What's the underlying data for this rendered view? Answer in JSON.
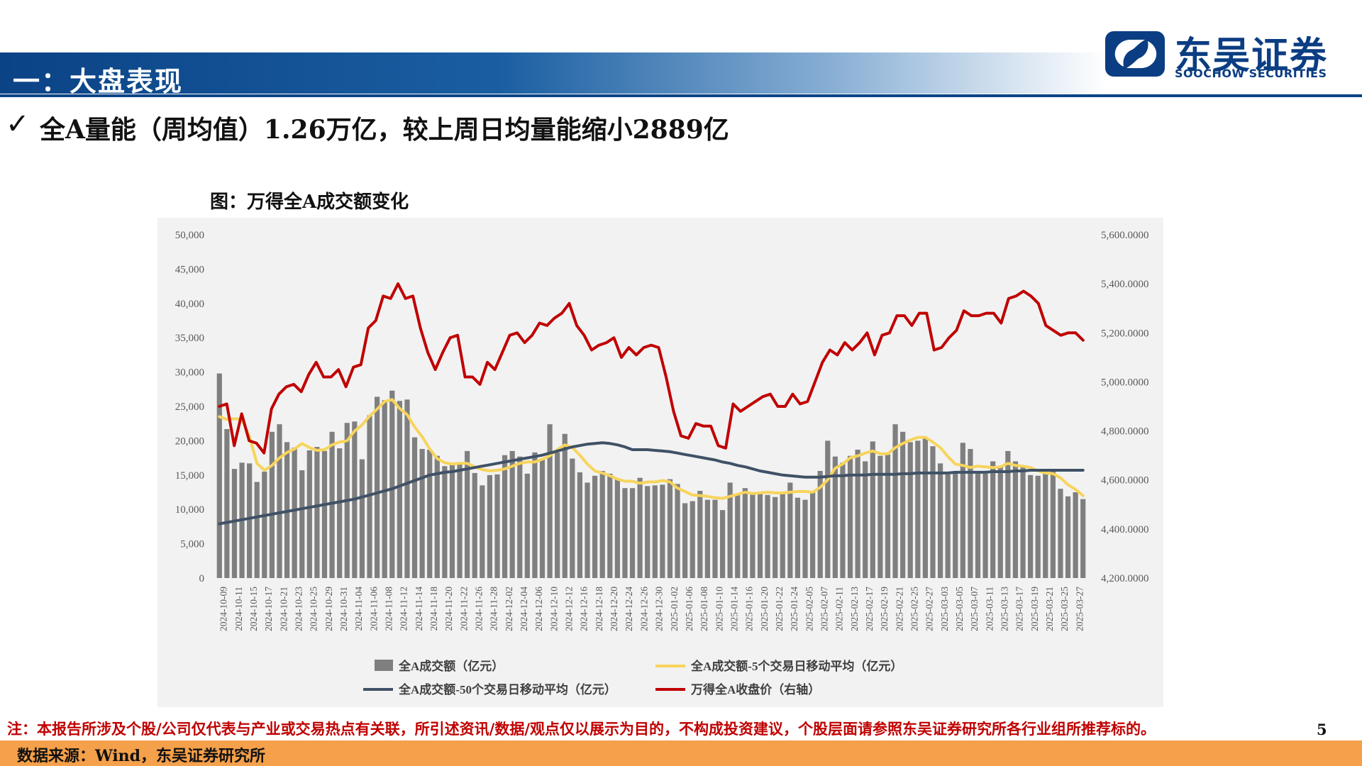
{
  "header": {
    "section_title": "一：大盘表现",
    "brand_cn": "东吴证券",
    "brand_en": "SOOCHOW SECURITIES",
    "accent_color": "#0b4386"
  },
  "headline": {
    "check_icon": "✓",
    "text": "全A量能（周均值）1.26万亿，较上周日均量能缩小2889亿"
  },
  "chart_caption": "图：万得全A成交额变化",
  "chart_data": {
    "type": "bar",
    "title": "",
    "x_labels": [
      "2024-10-09",
      "2024-10-11",
      "2024-10-15",
      "2024-10-17",
      "2024-10-21",
      "2024-10-23",
      "2024-10-25",
      "2024-10-29",
      "2024-10-31",
      "2024-11-04",
      "2024-11-06",
      "2024-11-08",
      "2024-11-12",
      "2024-11-14",
      "2024-11-18",
      "2024-11-20",
      "2024-11-22",
      "2024-11-26",
      "2024-11-28",
      "2024-12-02",
      "2024-12-04",
      "2024-12-06",
      "2024-12-10",
      "2024-12-12",
      "2024-12-16",
      "2024-12-18",
      "2024-12-20",
      "2024-12-24",
      "2024-12-26",
      "2024-12-30",
      "2025-01-02",
      "2025-01-06",
      "2025-01-08",
      "2025-01-10",
      "2025-01-14",
      "2025-01-16",
      "2025-01-20",
      "2025-01-22",
      "2025-01-24",
      "2025-02-05",
      "2025-02-07",
      "2025-02-11",
      "2025-02-13",
      "2025-02-17",
      "2025-02-19",
      "2025-02-21",
      "2025-02-25",
      "2025-02-27",
      "2025-03-03",
      "2025-03-05",
      "2025-03-07",
      "2025-03-11",
      "2025-03-13",
      "2025-03-17",
      "2025-03-19",
      "2025-03-21",
      "2025-03-25",
      "2025-03-27"
    ],
    "y_left": {
      "min": 0,
      "max": 50000,
      "ticks": [
        "0",
        "5,000",
        "10,000",
        "15,000",
        "20,000",
        "25,000",
        "30,000",
        "35,000",
        "40,000",
        "45,000",
        "50,000"
      ]
    },
    "y_right": {
      "min": 4200,
      "max": 5600,
      "ticks": [
        "4,200.0000",
        "4,400.0000",
        "4,600.0000",
        "4,800.0000",
        "5,000.0000",
        "5,200.0000",
        "5,400.0000",
        "5,600.0000"
      ]
    },
    "series": [
      {
        "name": "全A成交额（亿元）",
        "type": "bar",
        "color": "#7f7f7f",
        "values": [
          29800,
          21700,
          15900,
          16800,
          16700,
          14000,
          15500,
          21300,
          22400,
          19800,
          19000,
          15700,
          18600,
          19100,
          18500,
          21300,
          18900,
          22600,
          22800,
          17300,
          23700,
          26400,
          25900,
          27300,
          25800,
          26000,
          20500,
          18800,
          18700,
          17800,
          16300,
          16500,
          16800,
          18500,
          15300,
          13500,
          15000,
          15100,
          17900,
          18500,
          17700,
          15200,
          18300,
          17300,
          22400,
          18300,
          21000,
          17400,
          15400,
          13900,
          14900,
          15600,
          15200,
          14400,
          13100,
          13100,
          14600,
          13400,
          13500,
          13600,
          14400,
          13700,
          10900,
          11200,
          12700,
          11400,
          11400,
          9900,
          13900,
          12200,
          13100,
          12300,
          12300,
          12100,
          11800,
          12600,
          13900,
          11700,
          11400,
          12600,
          15600,
          20000,
          17700,
          16800,
          17800,
          18700,
          17000,
          19900,
          17800,
          18000,
          22400,
          21300,
          19800,
          20000,
          20400,
          19200,
          16700,
          15100,
          15500,
          19700,
          18800,
          15200,
          15200,
          17000,
          16300,
          18500,
          17000,
          16200,
          15000,
          14900,
          15700,
          15600,
          13000,
          11900,
          12500,
          11500
        ]
      },
      {
        "name": "全A成交额-5个交易日移动平均（亿元）",
        "type": "line",
        "color": "#f7d45c",
        "values": [
          23500,
          23100,
          23200,
          23100,
          20600,
          16700,
          15700,
          16400,
          17500,
          18300,
          18800,
          19600,
          19000,
          18600,
          18700,
          19400,
          19800,
          20000,
          21400,
          22300,
          23600,
          24600,
          25700,
          26000,
          24700,
          23800,
          22000,
          20600,
          18800,
          17400,
          16800,
          16600,
          16700,
          16700,
          16200,
          15800,
          15600,
          15700,
          15900,
          16300,
          16700,
          16900,
          16900,
          17300,
          17800,
          18700,
          19400,
          19000,
          17900,
          16600,
          15600,
          15300,
          14900,
          14400,
          14100,
          14100,
          13800,
          14000,
          14000,
          14200,
          14000,
          13100,
          12600,
          12100,
          12000,
          11900,
          11700,
          11600,
          11900,
          12200,
          12500,
          12300,
          12400,
          12500,
          12400,
          12400,
          12500,
          12600,
          12600,
          12500,
          13200,
          14300,
          16000,
          16600,
          17500,
          17800,
          18200,
          18500,
          18100,
          18100,
          19000,
          19600,
          20100,
          20500,
          20500,
          19800,
          19000,
          17700,
          16600,
          16400,
          16100,
          16300,
          16200,
          16100,
          16200,
          16700,
          16400,
          16300,
          16100,
          15600,
          15300,
          15200,
          14600,
          13600,
          12900,
          12000
        ]
      },
      {
        "name": "全A成交额-50个交易日移动平均（亿元）",
        "type": "line",
        "color": "#3f5166",
        "values": [
          7900,
          8100,
          8300,
          8500,
          8700,
          8900,
          9100,
          9300,
          9500,
          9700,
          9900,
          10100,
          10300,
          10500,
          10700,
          10900,
          11100,
          11300,
          11500,
          11800,
          12100,
          12400,
          12700,
          13000,
          13400,
          13800,
          14200,
          14600,
          15000,
          15200,
          15400,
          15500,
          15700,
          15900,
          16100,
          16300,
          16500,
          16700,
          16900,
          17100,
          17300,
          17500,
          17700,
          17900,
          18200,
          18500,
          18800,
          19100,
          19300,
          19500,
          19600,
          19700,
          19600,
          19400,
          19100,
          18700,
          18700,
          18700,
          18600,
          18500,
          18400,
          18200,
          18000,
          17800,
          17600,
          17400,
          17200,
          16900,
          16700,
          16400,
          16200,
          15900,
          15600,
          15400,
          15200,
          15000,
          14900,
          14800,
          14700,
          14700,
          14700,
          14800,
          14900,
          14900,
          15000,
          15000,
          15000,
          15100,
          15100,
          15100,
          15100,
          15200,
          15200,
          15300,
          15300,
          15300,
          15300,
          15300,
          15400,
          15400,
          15400,
          15400,
          15400,
          15500,
          15500,
          15500,
          15600,
          15600,
          15700,
          15700,
          15700,
          15700,
          15700,
          15700,
          15700,
          15700
        ]
      },
      {
        "name": "万得全A收盘价（右轴）",
        "type": "line",
        "color": "#c00000",
        "axis": "right",
        "values": [
          4900,
          4910,
          4740,
          4870,
          4760,
          4750,
          4710,
          4890,
          4950,
          4980,
          4990,
          4960,
          5030,
          5080,
          5020,
          5020,
          5050,
          4980,
          5060,
          5070,
          5220,
          5250,
          5350,
          5340,
          5400,
          5340,
          5350,
          5220,
          5120,
          5050,
          5120,
          5180,
          5190,
          5020,
          5020,
          4990,
          5080,
          5050,
          5120,
          5190,
          5200,
          5160,
          5190,
          5240,
          5230,
          5260,
          5280,
          5320,
          5230,
          5190,
          5130,
          5150,
          5160,
          5180,
          5100,
          5140,
          5110,
          5140,
          5150,
          5140,
          5020,
          4880,
          4780,
          4770,
          4830,
          4820,
          4820,
          4740,
          4730,
          4910,
          4880,
          4900,
          4920,
          4940,
          4950,
          4900,
          4900,
          4950,
          4910,
          4920,
          5000,
          5080,
          5130,
          5110,
          5160,
          5130,
          5160,
          5200,
          5110,
          5190,
          5200,
          5270,
          5270,
          5230,
          5280,
          5280,
          5130,
          5140,
          5180,
          5210,
          5290,
          5270,
          5270,
          5280,
          5280,
          5240,
          5340,
          5350,
          5370,
          5350,
          5320,
          5230,
          5210,
          5190,
          5200,
          5200,
          5170
        ]
      }
    ],
    "legend": [
      "全A成交额（亿元）",
      "全A成交额-5个交易日移动平均（亿元）",
      "全A成交额-50个交易日移动平均（亿元）",
      "万得全A收盘价（右轴）"
    ],
    "legend_position": "bottom",
    "grid": false
  },
  "note": "注：本报告所涉及个股/公司仅代表与产业或交易热点有关联，所引述资讯/数据/观点仅以展示为目的，不构成投资建议，个股层面请参照东吴证券研究所各行业组所推荐标的。",
  "page_number": "5",
  "footer": {
    "source": "数据来源：Wind，东吴证券研究所",
    "color": "#f5a04a"
  }
}
